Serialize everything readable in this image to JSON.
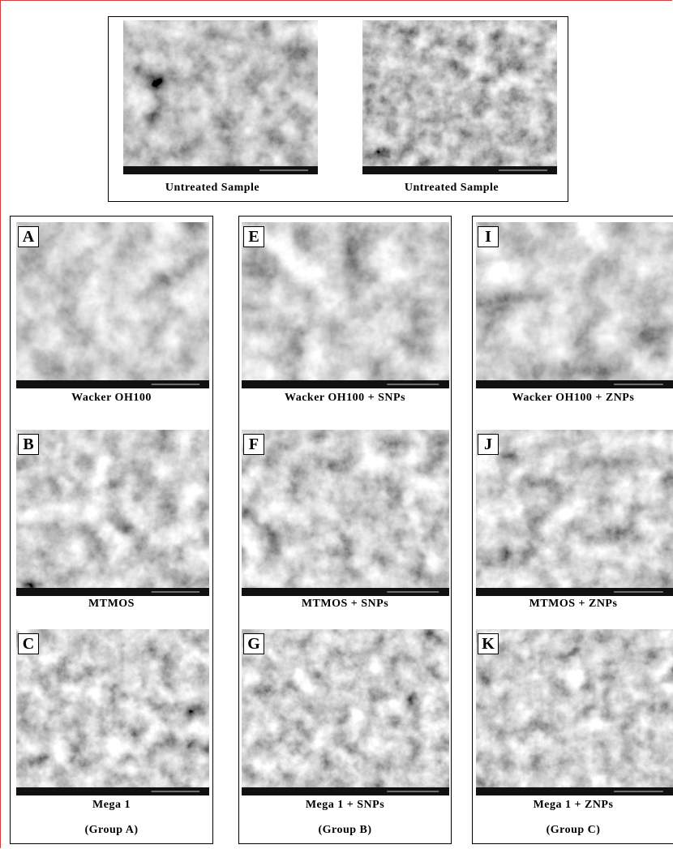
{
  "untreated": [
    "Untreated Sample",
    "Untreated Sample"
  ],
  "groups": [
    {
      "label": "(Group A)",
      "panels": [
        {
          "letter": "A",
          "caption": "Wacker OH100"
        },
        {
          "letter": "B",
          "caption": "MTMOS"
        },
        {
          "letter": "C",
          "caption": "Mega 1"
        }
      ]
    },
    {
      "label": "(Group B)",
      "panels": [
        {
          "letter": "E",
          "caption": "Wacker OH100  + SNPs"
        },
        {
          "letter": "F",
          "caption": "MTMOS + SNPs"
        },
        {
          "letter": "G",
          "caption": "Mega 1  + SNPs"
        }
      ]
    },
    {
      "label": "(Group C)",
      "panels": [
        {
          "letter": "I",
          "caption": "Wacker OH100 +  ZNPs"
        },
        {
          "letter": "J",
          "caption": "MTMOS + ZNPs"
        },
        {
          "letter": "K",
          "caption": "Mega 1  + ZNPs"
        }
      ]
    }
  ]
}
